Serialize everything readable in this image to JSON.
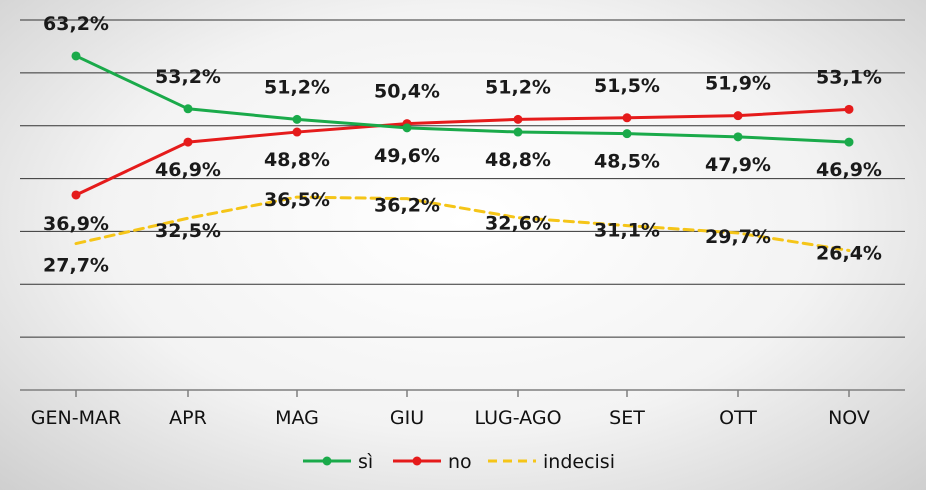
{
  "chart_data": {
    "type": "line",
    "categories": [
      "GEN-MAR",
      "APR",
      "MAG",
      "GIU",
      "LUG-AGO",
      "SET",
      "OTT",
      "NOV"
    ],
    "series": [
      {
        "name": "sì",
        "values": [
          63.2,
          53.2,
          51.2,
          49.6,
          48.8,
          48.5,
          47.9,
          46.9
        ],
        "labels": [
          "63,2%",
          "53,2%",
          "51,2%",
          "49,6%",
          "48,8%",
          "48,5%",
          "47,9%",
          "46,9%"
        ],
        "color": "#1aaa4a",
        "style": "solid",
        "markers": true
      },
      {
        "name": "no",
        "values": [
          36.9,
          46.9,
          48.8,
          50.4,
          51.2,
          51.5,
          51.9,
          53.1
        ],
        "labels": [
          "36,9%",
          "46,9%",
          "48,8%",
          "50,4%",
          "51,2%",
          "51,5%",
          "51,9%",
          "53,1%"
        ],
        "color": "#e51b1b",
        "style": "solid",
        "markers": true
      },
      {
        "name": "indecisi",
        "values": [
          27.7,
          32.5,
          36.5,
          36.2,
          32.6,
          31.1,
          29.7,
          26.4
        ],
        "labels": [
          "27,7%",
          "32,5%",
          "36,5%",
          "36,2%",
          "32,6%",
          "31,1%",
          "29,7%",
          "26,4%"
        ],
        "color": "#f5c518",
        "style": "dashed",
        "markers": false
      }
    ],
    "ylim": [
      0,
      70
    ],
    "grid": true,
    "legend": "bottom",
    "title": "",
    "xlabel": "",
    "ylabel": ""
  }
}
